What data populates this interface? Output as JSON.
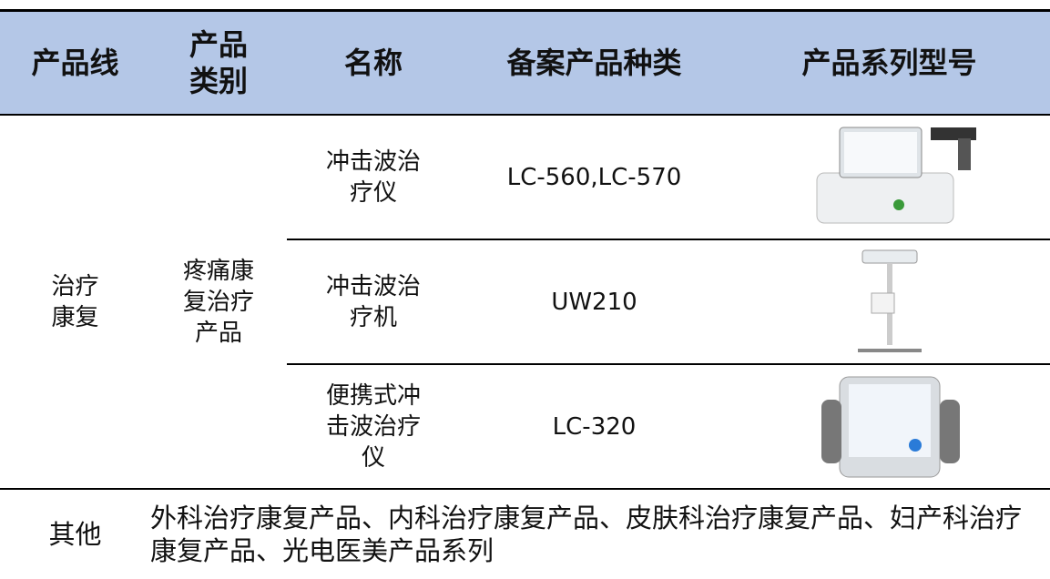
{
  "table": {
    "header": [
      "产品线",
      "产品类别",
      "名称",
      "备案产品种类",
      "产品系列型号"
    ],
    "line": "治疗康复",
    "category": "疼痛康复治疗产品",
    "rows": [
      [
        "冲击波治疗仪",
        "LC-560,LC-570"
      ],
      [
        "冲击波治疗机",
        "UW210"
      ],
      [
        "便携式冲击波治疗仪",
        "LC-320"
      ]
    ],
    "other": [
      "其他",
      "外科治疗康复产品、内科治疗康复产品、皮肤科治疗康复产品、妇产科治疗康复产品、光电医美产品系列"
    ]
  }
}
